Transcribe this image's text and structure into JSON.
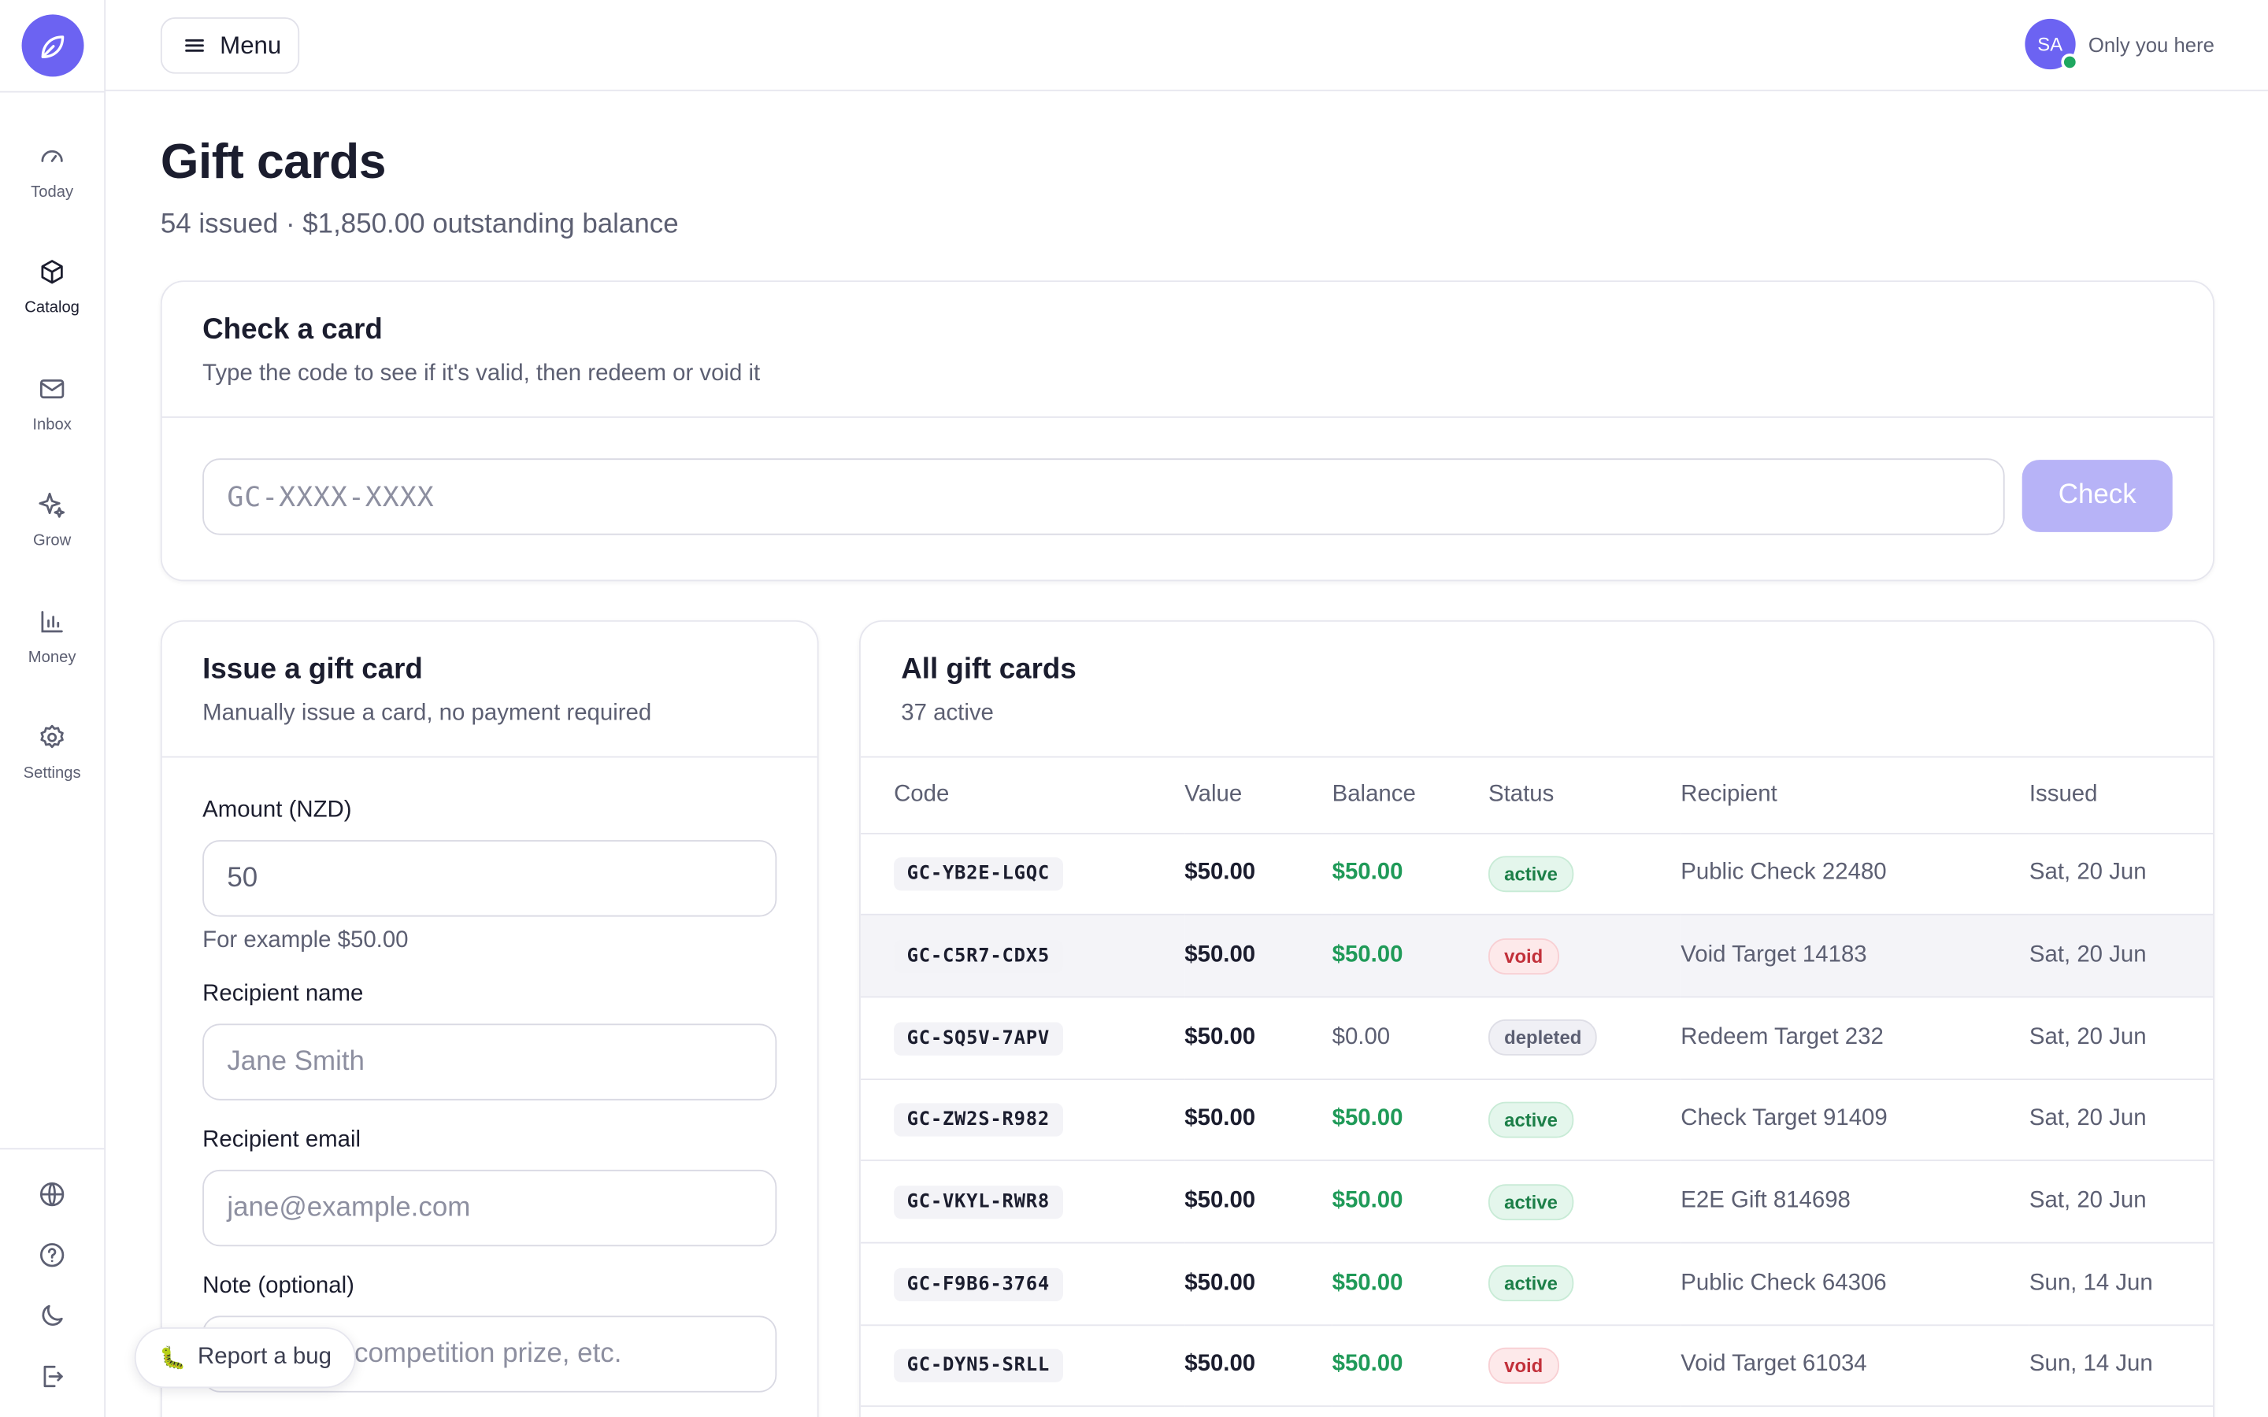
{
  "topbar": {
    "menu_label": "Menu",
    "avatar_initials": "SA",
    "presence_text": "Only you here"
  },
  "sidebar": {
    "items": [
      {
        "label": "Today",
        "icon": "gauge-icon"
      },
      {
        "label": "Catalog",
        "icon": "box-icon"
      },
      {
        "label": "Inbox",
        "icon": "mail-icon"
      },
      {
        "label": "Grow",
        "icon": "sparkle-icon"
      },
      {
        "label": "Money",
        "icon": "bar-chart-icon"
      },
      {
        "label": "Settings",
        "icon": "gear-icon"
      }
    ],
    "active": "Catalog",
    "bottom_icons": [
      "globe-icon",
      "help-icon",
      "moon-icon",
      "logout-icon"
    ]
  },
  "page": {
    "title": "Gift cards",
    "subtitle": "54 issued · $1,850.00 outstanding balance"
  },
  "check": {
    "title": "Check a card",
    "desc": "Type the code to see if it's valid, then redeem or void it",
    "placeholder": "GC-XXXX-XXXX",
    "button": "Check"
  },
  "issue": {
    "title": "Issue a gift card",
    "desc": "Manually issue a card, no payment required",
    "amount_label": "Amount (NZD)",
    "amount_value": "50",
    "amount_hint": "For example $50.00",
    "name_label": "Recipient name",
    "name_placeholder": "Jane Smith",
    "email_label": "Recipient email",
    "email_placeholder": "jane@example.com",
    "note_label": "Note (optional)",
    "note_placeholder": "competition prize, etc."
  },
  "list": {
    "title": "All gift cards",
    "subtitle": "37 active",
    "columns": [
      "Code",
      "Value",
      "Balance",
      "Status",
      "Recipient",
      "Issued"
    ],
    "rows": [
      {
        "code": "GC-YB2E-LGQC",
        "value": "$50.00",
        "balance": "$50.00",
        "status": "active",
        "recipient": "Public Check 22480",
        "issued": "Sat, 20 Jun"
      },
      {
        "code": "GC-C5R7-CDX5",
        "value": "$50.00",
        "balance": "$50.00",
        "status": "void",
        "recipient": "Void Target 14183",
        "issued": "Sat, 20 Jun"
      },
      {
        "code": "GC-SQ5V-7APV",
        "value": "$50.00",
        "balance": "$0.00",
        "status": "depleted",
        "recipient": "Redeem Target 232",
        "issued": "Sat, 20 Jun"
      },
      {
        "code": "GC-ZW2S-R982",
        "value": "$50.00",
        "balance": "$50.00",
        "status": "active",
        "recipient": "Check Target 91409",
        "issued": "Sat, 20 Jun"
      },
      {
        "code": "GC-VKYL-RWR8",
        "value": "$50.00",
        "balance": "$50.00",
        "status": "active",
        "recipient": "E2E Gift 814698",
        "issued": "Sat, 20 Jun"
      },
      {
        "code": "GC-F9B6-3764",
        "value": "$50.00",
        "balance": "$50.00",
        "status": "active",
        "recipient": "Public Check 64306",
        "issued": "Sun, 14 Jun"
      },
      {
        "code": "GC-DYN5-SRLL",
        "value": "$50.00",
        "balance": "$50.00",
        "status": "void",
        "recipient": "Void Target 61034",
        "issued": "Sun, 14 Jun"
      }
    ],
    "highlighted_row": 1
  },
  "report_bug": {
    "label": "Report a bug",
    "icon": "bug-icon"
  },
  "colors": {
    "accent": "#6c63f2",
    "green": "#1f9a58",
    "red": "#c2303a"
  }
}
